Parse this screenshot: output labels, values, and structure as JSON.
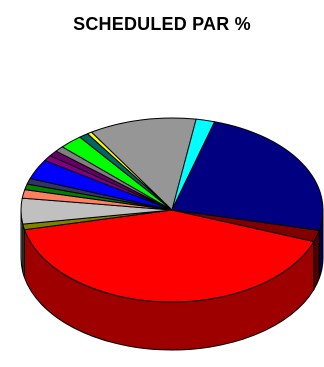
{
  "chart_data": {
    "type": "pie",
    "title": "SCHEDULED PAR %",
    "legend": "none",
    "slices": [
      {
        "value": 41.0,
        "color": "#ff0000"
      },
      {
        "value": 1.0,
        "color": "#808000"
      },
      {
        "value": 4.5,
        "color": "#c0c0c0"
      },
      {
        "value": 1.5,
        "color": "#ff8060"
      },
      {
        "value": 1.0,
        "color": "#008000"
      },
      {
        "value": 1.0,
        "color": "#333366"
      },
      {
        "value": 3.5,
        "color": "#0000ff"
      },
      {
        "value": 1.0,
        "color": "#800080"
      },
      {
        "value": 1.0,
        "color": "#660066"
      },
      {
        "value": 1.0,
        "color": "#808080"
      },
      {
        "value": 2.5,
        "color": "#00ff00"
      },
      {
        "value": 1.0,
        "color": "#006666"
      },
      {
        "value": 0.5,
        "color": "#ffff00"
      },
      {
        "value": 11.5,
        "color": "#969696"
      },
      {
        "value": 2.0,
        "color": "#00ffff"
      },
      {
        "value": 24.0,
        "color": "#000080"
      },
      {
        "value": 2.0,
        "color": "#800000"
      }
    ]
  }
}
